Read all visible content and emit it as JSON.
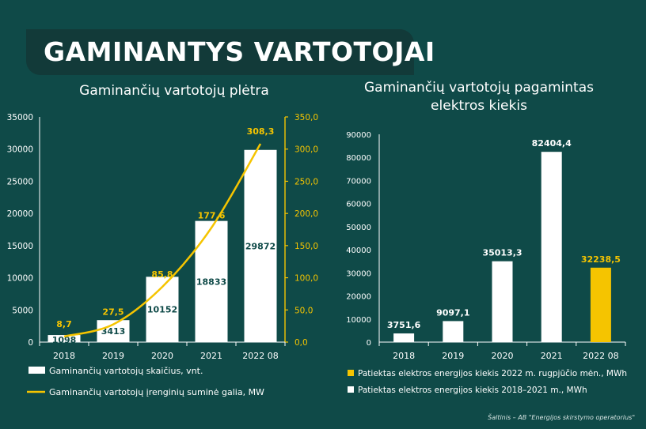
{
  "banner": {
    "title": "GAMINANTYS VARTOTOJAI"
  },
  "source": "Šaltinis – AB \"Energijos skirstymo operatorius\"",
  "colors": {
    "background": "#0f4a48",
    "banner": "#123a39",
    "bar": "#ffffff",
    "accent": "#f5c400",
    "bar_label": "#0f4a48"
  },
  "chart_data": [
    {
      "type": "bar",
      "title": "Gaminančių vartotojų plėtra",
      "categories": [
        "2018",
        "2019",
        "2020",
        "2021",
        "2022 08"
      ],
      "y_ticks": [
        "0",
        "5000",
        "10000",
        "15000",
        "20000",
        "25000",
        "30000",
        "35000"
      ],
      "y2_ticks": [
        "0,0",
        "50,0",
        "100,0",
        "150,0",
        "200,0",
        "250,0",
        "300,0",
        "350,0"
      ],
      "ylim": [
        0,
        35000
      ],
      "y2lim": [
        0,
        350
      ],
      "series": [
        {
          "name": "Gaminančių vartotojų skaičius, vnt.",
          "type": "bar",
          "axis": "left",
          "values": [
            1098,
            3413,
            10152,
            18833,
            29872
          ],
          "labels": [
            "1098",
            "3413",
            "10152",
            "18833",
            "29872"
          ]
        },
        {
          "name": "Gaminančių vartotojų įrenginių suminė galia, MW",
          "type": "line",
          "axis": "right",
          "values": [
            8.7,
            27.5,
            85.8,
            177.6,
            308.3
          ],
          "labels": [
            "8,7",
            "27,5",
            "85,8",
            "177,6",
            "308,3"
          ]
        }
      ],
      "legend": "bottom"
    },
    {
      "type": "bar",
      "title": "Gaminančių vartotojų pagamintas elektros kiekis",
      "categories": [
        "2018",
        "2019",
        "2020",
        "2021",
        "2022 08"
      ],
      "y_ticks": [
        "0",
        "10000",
        "20000",
        "30000",
        "40000",
        "50000",
        "60000",
        "70000",
        "80000",
        "90000"
      ],
      "ylim": [
        0,
        90000
      ],
      "values": [
        3751.6,
        9097.1,
        35013.3,
        82404.4,
        32238.5
      ],
      "labels": [
        "3751,6",
        "9097,1",
        "35013,3",
        "82404,4",
        "32238,5"
      ],
      "highlight_index": 4,
      "legend_items": [
        {
          "name": "Patiektas elektros energijos kiekis 2022 m. rugpjūčio mėn., MWh",
          "color": "#f5c400"
        },
        {
          "name": "Patiektas elektros energijos kiekis 2018–2021 m., MWh",
          "color": "#ffffff"
        }
      ],
      "legend": "bottom"
    }
  ]
}
